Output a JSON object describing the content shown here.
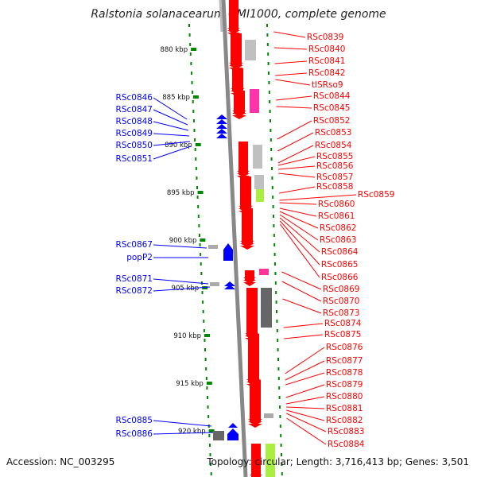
{
  "title": "Ralstonia solanacearum GMI1000, complete genome",
  "footer": {
    "accession": "Accession: NC_003295",
    "topology": "Topology: circular; Length: 3,716,413 bp; Genes: 3,501"
  },
  "scale_ticks": [
    "880 kbp",
    "885 kbp",
    "890 kbp",
    "895 kbp",
    "900 kbp",
    "905 kbp",
    "910 kbp",
    "915 kbp",
    "920 kbp"
  ],
  "left_genes": [
    "RSc0846",
    "RSc0847",
    "RSc0848",
    "RSc0849",
    "RSc0850",
    "RSc0851",
    "RSc0867",
    "popP2",
    "RSc0871",
    "RSc0872",
    "RSc0885",
    "RSc0886"
  ],
  "right_genes": [
    "RSc0839",
    "RSc0840",
    "RSc0841",
    "RSc0842",
    "tlSRso9",
    "RSc0844",
    "RSc0845",
    "RSc0852",
    "RSc0853",
    "RSc0854",
    "RSc0855",
    "RSc0856",
    "RSc0857",
    "RSc0858",
    "RSc0859",
    "RSc0860",
    "RSc0861",
    "RSc0862",
    "RSc0863",
    "RSc0864",
    "RSc0865",
    "RSc0866",
    "RSc0869",
    "RSc0870",
    "RSc0873",
    "RSc0874",
    "RSc0875",
    "RSc0876",
    "RSc0877",
    "RSc0878",
    "RSc0879",
    "RSc0880",
    "RSc0881",
    "RSc0882",
    "RSc0883",
    "RSc0884"
  ],
  "colors": {
    "forward_strand": "#ff0000",
    "reverse_strand": "#0000ff",
    "scale_tick": "#008800",
    "backbone": "#888888"
  }
}
